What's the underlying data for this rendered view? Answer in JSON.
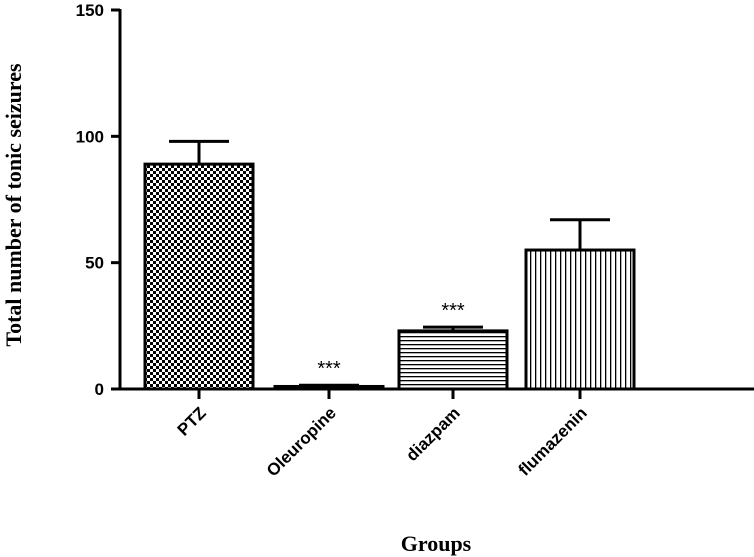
{
  "chart_data": {
    "type": "bar",
    "xlabel": "Groups",
    "ylabel": "Total number of tonic seizures",
    "ylim": [
      0,
      150
    ],
    "yticks": [
      0,
      50,
      100,
      150
    ],
    "categories": [
      "PTZ",
      "Oleuropine",
      "diazpam",
      "flumazenin"
    ],
    "values": [
      89,
      1,
      23,
      55
    ],
    "errors": [
      9,
      0.5,
      1.5,
      12
    ],
    "significance": [
      "",
      "***",
      "***",
      ""
    ],
    "patterns": [
      "checker",
      "checker-fine",
      "horizontal",
      "vertical"
    ],
    "grid": false,
    "legend": "none"
  }
}
